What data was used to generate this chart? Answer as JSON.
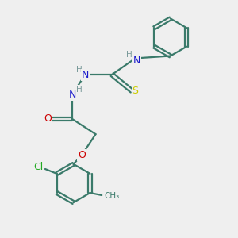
{
  "background_color": "#efefef",
  "atom_colors": {
    "C": "#3a7a6a",
    "N": "#1a1acc",
    "O": "#cc0000",
    "S": "#cccc00",
    "Cl": "#22aa22",
    "H": "#7a9a9a"
  },
  "bond_color": "#3a7a6a",
  "bond_width": 1.6,
  "figsize": [
    3.0,
    3.0
  ],
  "dpi": 100,
  "xlim": [
    0,
    10
  ],
  "ylim": [
    0,
    10
  ]
}
